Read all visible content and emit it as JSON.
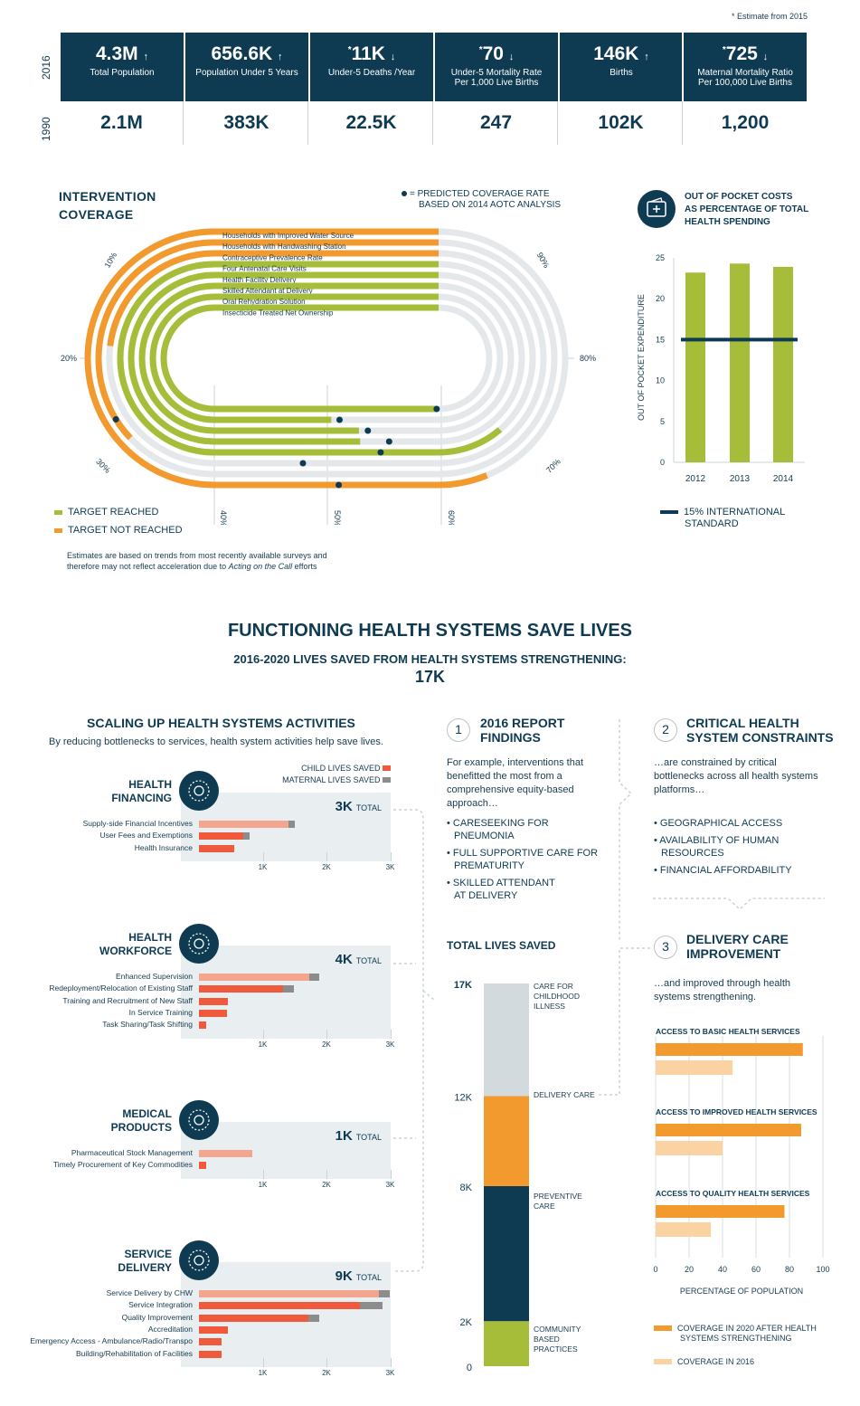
{
  "header": {
    "estimate_note": "* Estimate from 2015",
    "year_top": "2016",
    "year_bottom": "1990"
  },
  "stats": [
    {
      "value_2016": "4.3M",
      "arrow": "↑",
      "star": "",
      "label1": "Total Population",
      "label2": "",
      "value_1990": "2.1M"
    },
    {
      "value_2016": "656.6K",
      "arrow": "↑",
      "star": "",
      "label1": "Population Under 5 Years",
      "label2": "",
      "value_1990": "383K"
    },
    {
      "value_2016": "11K",
      "arrow": "↓",
      "star": "*",
      "label1": "Under-5 Deaths /Year",
      "label2": "",
      "value_1990": "22.5K"
    },
    {
      "value_2016": "70",
      "arrow": "↓",
      "star": "*",
      "label1": "Under-5 Mortality Rate",
      "label2": "Per 1,000 Live Births",
      "value_1990": "247"
    },
    {
      "value_2016": "146K",
      "arrow": "↑",
      "star": "",
      "label1": "Births",
      "label2": "",
      "value_1990": "102K"
    },
    {
      "value_2016": "725",
      "arrow": "↓",
      "star": "*",
      "label1": "Maternal Mortality Ratio",
      "label2": "Per 100,000 Live Births",
      "value_1990": "1,200"
    }
  ],
  "intervention": {
    "title1": "INTERVENTION",
    "title2": "COVERAGE",
    "predicted_note1": "= PREDICTED COVERAGE RATE",
    "predicted_note2": "BASED ON 2014 AOTC ANALYSIS",
    "legend_reached": "TARGET REACHED",
    "legend_not_reached": "TARGET NOT REACHED",
    "footnote1": "Estimates are based on trends from most recently available surveys and",
    "footnote2_a": "therefore may not reflect acceleration due to ",
    "footnote2_i": "Acting on the Call",
    "footnote2_b": " efforts",
    "pct_labels": [
      "10%",
      "20%",
      "30%",
      "40%",
      "50%",
      "60%",
      "70%",
      "80%",
      "90%"
    ]
  },
  "oop": {
    "title1": "OUT OF POCKET COSTS",
    "title2": "AS PERCENTAGE OF TOTAL",
    "title3": "HEALTH SPENDING",
    "ylabel": "OUT OF POCKET EXPENDITURE",
    "legend1": "15% INTERNATIONAL",
    "legend2": "STANDARD"
  },
  "main": {
    "title": "FUNCTIONING HEALTH SYSTEMS SAVE LIVES",
    "subtitle": "2016-2020 LIVES SAVED FROM HEALTH SYSTEMS STRENGTHENING:",
    "total": "17K"
  },
  "scaling": {
    "title": "SCALING UP HEALTH SYSTEMS ACTIVITIES",
    "subtitle": "By reducing bottlenecks to services, health system activities help save lives.",
    "legend_child": "CHILD LIVES SAVED",
    "legend_maternal": "MATERNAL LIVES SAVED",
    "total_word": "TOTAL",
    "axis": [
      "1K",
      "2K",
      "3K"
    ]
  },
  "findings": {
    "num": "1",
    "title1": "2016 REPORT",
    "title2": "FINDINGS",
    "body1": "For example, interventions that",
    "body2": "benefitted the most from a",
    "body3": "comprehensive equity-based",
    "body4": "approach…",
    "b1a": "• CARESEEKING FOR",
    "b1b": "PNEUMONIA",
    "b2a": "• FULL SUPPORTIVE CARE FOR",
    "b2b": "PREMATURITY",
    "b3a": "• SKILLED ATTENDANT",
    "b3b": "AT DELIVERY"
  },
  "constraints": {
    "num": "2",
    "title1": "CRITICAL HEALTH",
    "title2": "SYSTEM CONSTRAINTS",
    "body1": "…are constrained by critical",
    "body2": "bottlenecks across all health systems",
    "body3": "platforms…",
    "b1": "• GEOGRAPHICAL ACCESS",
    "b2a": "• AVAILABILITY OF HUMAN",
    "b2b": "RESOURCES",
    "b3": "• FINANCIAL AFFORDABILITY"
  },
  "delivery": {
    "num": "3",
    "title1": "DELIVERY CARE",
    "title2": "IMPROVEMENT",
    "body1": "…and improved through health",
    "body2": "systems strengthening.",
    "xlabel": "PERCENTAGE OF POPULATION",
    "legend_2020a": "COVERAGE IN 2020 AFTER HEALTH",
    "legend_2020b": "SYSTEMS STRENGTHENING",
    "legend_2016": "COVERAGE IN 2016"
  },
  "total_lives": {
    "title": "TOTAL LIVES SAVED",
    "cat1a": "CARE FOR",
    "cat1b": "CHILDHOOD",
    "cat1c": "ILLNESS",
    "cat2": "DELIVERY CARE",
    "cat3a": "PREVENTIVE",
    "cat3b": "CARE",
    "cat4a": "COMMUNITY",
    "cat4b": "BASED",
    "cat4c": "PRACTICES"
  },
  "chart_data": [
    {
      "type": "bar",
      "id": "intervention-coverage",
      "title": "INTERVENTION COVERAGE",
      "categories": [
        "Households with Improved Water Source",
        "Households with Handwashing Station",
        "Contraceptive Prevalence Rate",
        "Four Antenatal Care Visits",
        "Health Facility Delivery",
        "Skilled Attendant at Delivery",
        "Oral Rehydration Solution",
        "Insecticide Treated Net Ownership"
      ],
      "series": [
        {
          "name": "Coverage",
          "values": [
            72,
            42,
            34,
            78,
            65,
            66,
            64,
            79
          ]
        },
        {
          "name": "Predicted",
          "values": [
            60,
            40,
            58,
            66,
            68,
            67,
            65,
            79
          ]
        }
      ],
      "target_reached": [
        false,
        false,
        false,
        true,
        true,
        true,
        true,
        true
      ],
      "colors": {
        "reached": "#a6bd3a",
        "not_reached": "#f29a2e",
        "track": "#e4e8ea",
        "dot": "#0e3a52"
      },
      "ylim": [
        0,
        100
      ]
    },
    {
      "type": "bar",
      "id": "out-of-pocket",
      "title": "OUT OF POCKET COSTS AS PERCENTAGE OF TOTAL HEALTH SPENDING",
      "categories": [
        "2012",
        "2013",
        "2014"
      ],
      "values": [
        23.2,
        24.3,
        23.9
      ],
      "reference_line": 15,
      "ylabel": "OUT OF POCKET EXPENDITURE",
      "yticks": [
        "0",
        "5",
        "10",
        "15",
        "20",
        "25"
      ],
      "ylim": [
        0,
        25
      ],
      "colors": {
        "bar": "#a6bd3a",
        "line": "#0e3a52"
      }
    },
    {
      "type": "bar",
      "id": "scaling-activities",
      "groups": [
        {
          "name": "HEALTH FINANCING",
          "name1": "HEALTH",
          "name2": "FINANCING",
          "total": "3K",
          "items": [
            {
              "label": "Supply-side Financial Incentives",
              "child": 1400,
              "maternal": 100
            },
            {
              "label": "User Fees and Exemptions",
              "child": 700,
              "maternal": 100
            },
            {
              "label": "Health Insurance",
              "child": 550,
              "maternal": 0
            }
          ]
        },
        {
          "name": "HEALTH WORKFORCE",
          "name1": "HEALTH",
          "name2": "WORKFORCE",
          "total": "4K",
          "items": [
            {
              "label": "Enhanced Supervision",
              "child": 1730,
              "maternal": 150
            },
            {
              "label": "Redeployment/Relocation of Existing Staff",
              "child": 1320,
              "maternal": 170
            },
            {
              "label": "Training and Recruitment of New Staff",
              "child": 450,
              "maternal": 0
            },
            {
              "label": "In Service Training",
              "child": 440,
              "maternal": 0
            },
            {
              "label": "Task Sharing/Task Shifting",
              "child": 120,
              "maternal": 0
            }
          ]
        },
        {
          "name": "MEDICAL PRODUCTS",
          "name1": "MEDICAL",
          "name2": "PRODUCTS",
          "total": "1K",
          "items": [
            {
              "label": "Pharmaceutical Stock Management",
              "child": 830,
              "maternal": 0
            },
            {
              "label": "Timely Procurement of Key Commodities",
              "child": 110,
              "maternal": 0
            }
          ]
        },
        {
          "name": "SERVICE DELIVERY",
          "name1": "SERVICE",
          "name2": "DELIVERY",
          "total": "9K",
          "items": [
            {
              "label": "Service Delivery by CHW",
              "child": 2820,
              "maternal": 180
            },
            {
              "label": "Service Integration",
              "child": 2520,
              "maternal": 360
            },
            {
              "label": "Quality Improvement",
              "child": 1720,
              "maternal": 160
            },
            {
              "label": "Accreditation",
              "child": 450,
              "maternal": 0
            },
            {
              "label": "Emergency Access - Ambulance/Radio/Transpo",
              "child": 360,
              "maternal": 0
            },
            {
              "label": "Building/Rehabilitation of Facilities",
              "child": 360,
              "maternal": 0
            }
          ]
        }
      ],
      "xlim": [
        0,
        3000
      ],
      "colors": {
        "child": "#ee5a3b",
        "child_light": "#f4a58f",
        "maternal": "#8c8c8c"
      }
    },
    {
      "type": "bar",
      "id": "total-lives-saved",
      "title": "TOTAL LIVES SAVED",
      "stacked": true,
      "segments": [
        {
          "name": "COMMUNITY BASED PRACTICES",
          "from": 0,
          "to": 2,
          "color": "#a6bd3a"
        },
        {
          "name": "PREVENTIVE CARE",
          "from": 2,
          "to": 8,
          "color": "#0e3a52"
        },
        {
          "name": "DELIVERY CARE",
          "from": 8,
          "to": 12,
          "color": "#f29a2e"
        },
        {
          "name": "CARE FOR CHILDHOOD ILLNESS",
          "from": 12,
          "to": 17,
          "color": "#d3dadd"
        }
      ],
      "yticks": [
        "0",
        "2K",
        "8K",
        "12K",
        "17K"
      ],
      "ytick_values": [
        0,
        2,
        8,
        12,
        17
      ]
    },
    {
      "type": "bar",
      "id": "delivery-care-improvement",
      "xlabel": "PERCENTAGE OF POPULATION",
      "categories": [
        "ACCESS TO BASIC HEALTH SERVICES",
        "ACCESS TO IMPROVED HEALTH SERVICES",
        "ACCESS TO QUALITY HEALTH SERVICES"
      ],
      "series": [
        {
          "name": "COVERAGE IN 2020 AFTER HEALTH SYSTEMS STRENGTHENING",
          "values": [
            88,
            87,
            77
          ]
        },
        {
          "name": "COVERAGE IN 2016",
          "values": [
            46,
            40,
            33
          ]
        }
      ],
      "xticks": [
        "0",
        "20",
        "40",
        "60",
        "80",
        "100"
      ],
      "xlim": [
        0,
        100
      ],
      "colors": {
        "2020": "#f29a2e",
        "2016": "#fbd3a3"
      }
    }
  ]
}
